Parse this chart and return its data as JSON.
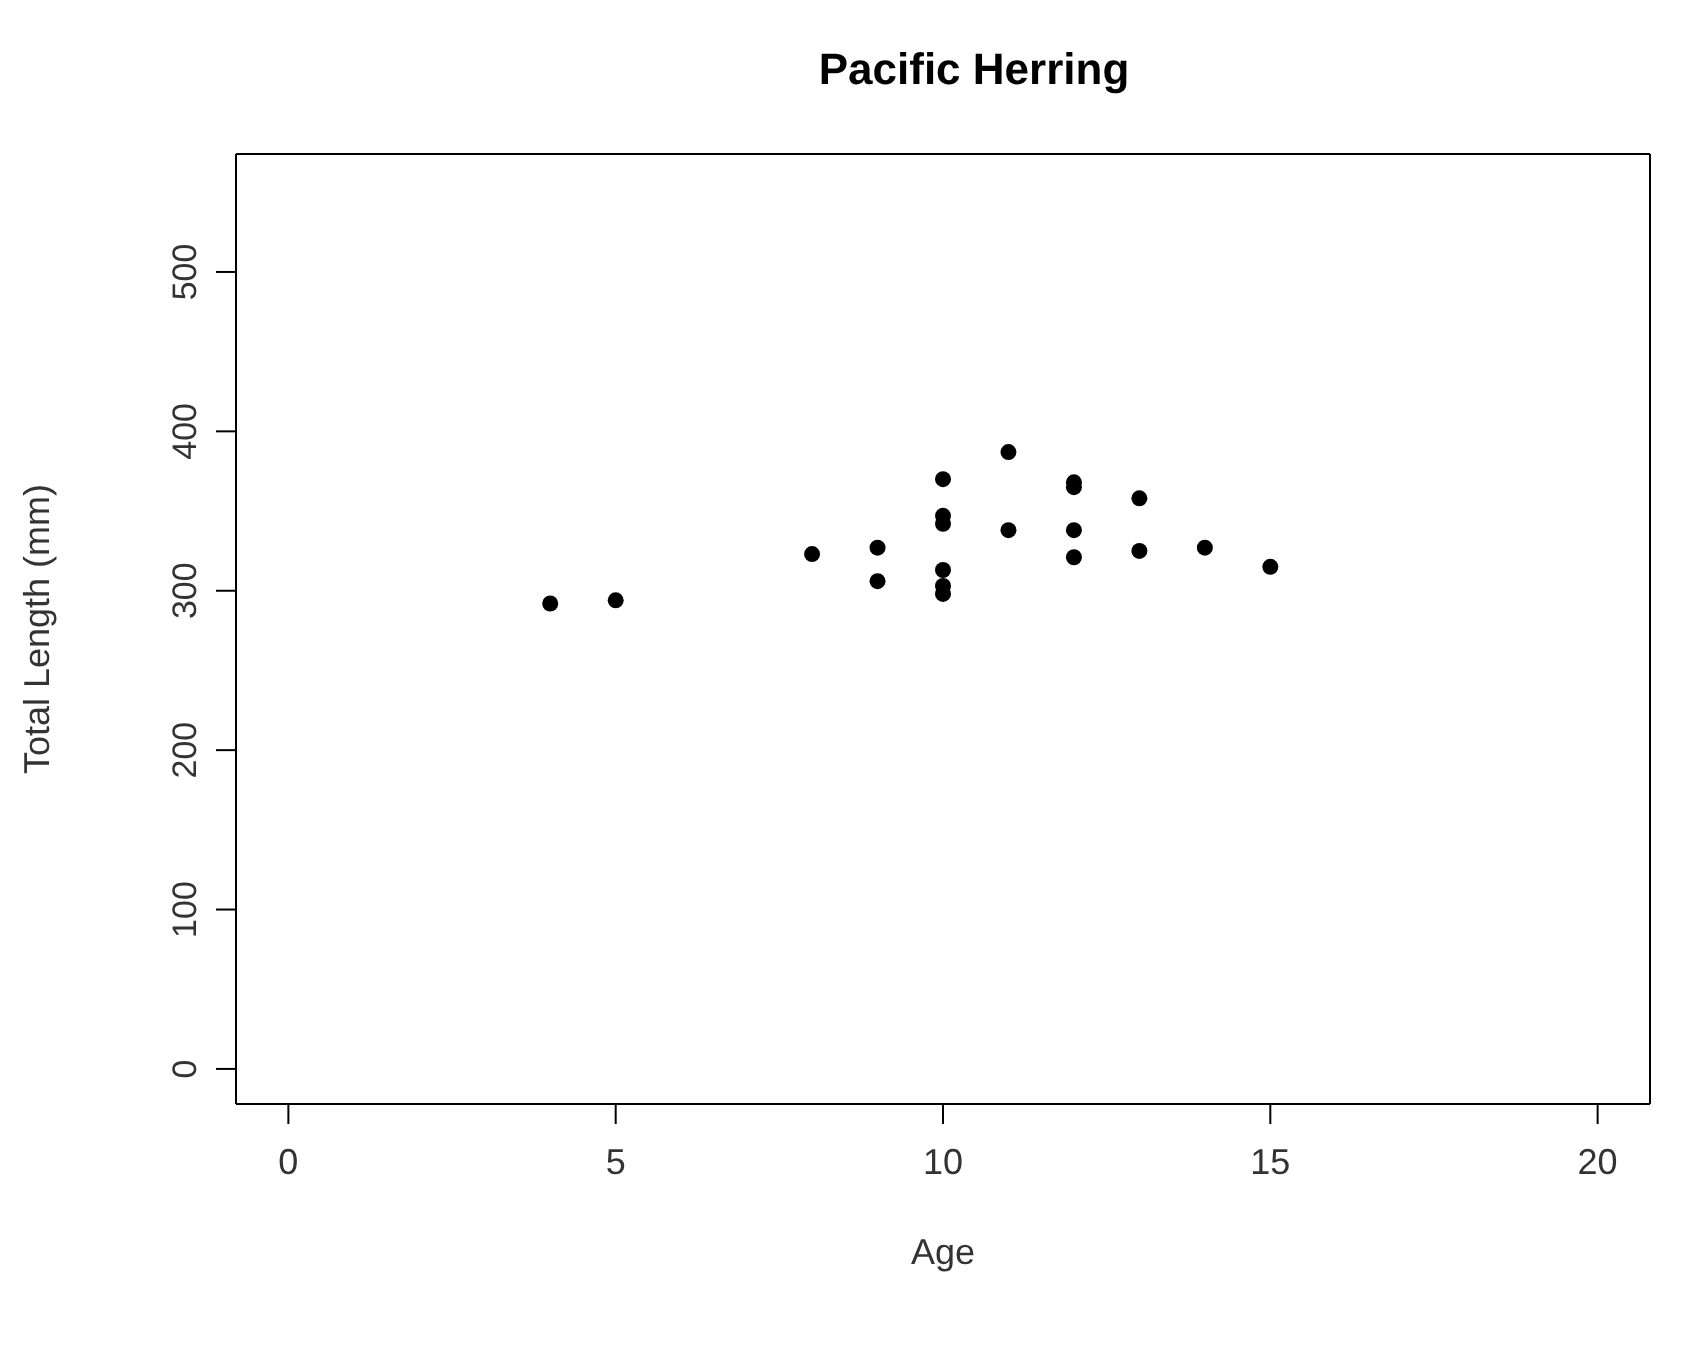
{
  "chart_data": {
    "type": "scatter",
    "title": "Pacific Herring",
    "xlabel": "Age",
    "ylabel": "Total Length (mm)",
    "x": [
      4,
      5,
      8,
      9,
      9,
      10,
      10,
      10,
      10,
      10,
      10,
      11,
      11,
      12,
      12,
      12,
      12,
      13,
      13,
      14,
      15
    ],
    "values": [
      292,
      294,
      323,
      327,
      306,
      370,
      347,
      342,
      313,
      303,
      298,
      387,
      338,
      368,
      365,
      338,
      321,
      358,
      325,
      327,
      315
    ],
    "color": "#000000",
    "marker": "circle",
    "xlim": [
      -0.8,
      20.8
    ],
    "xticks": [
      0,
      5,
      10,
      15,
      20
    ],
    "ylim": [
      -22,
      574
    ],
    "yticks": [
      0,
      100,
      200,
      300,
      400,
      500
    ]
  }
}
